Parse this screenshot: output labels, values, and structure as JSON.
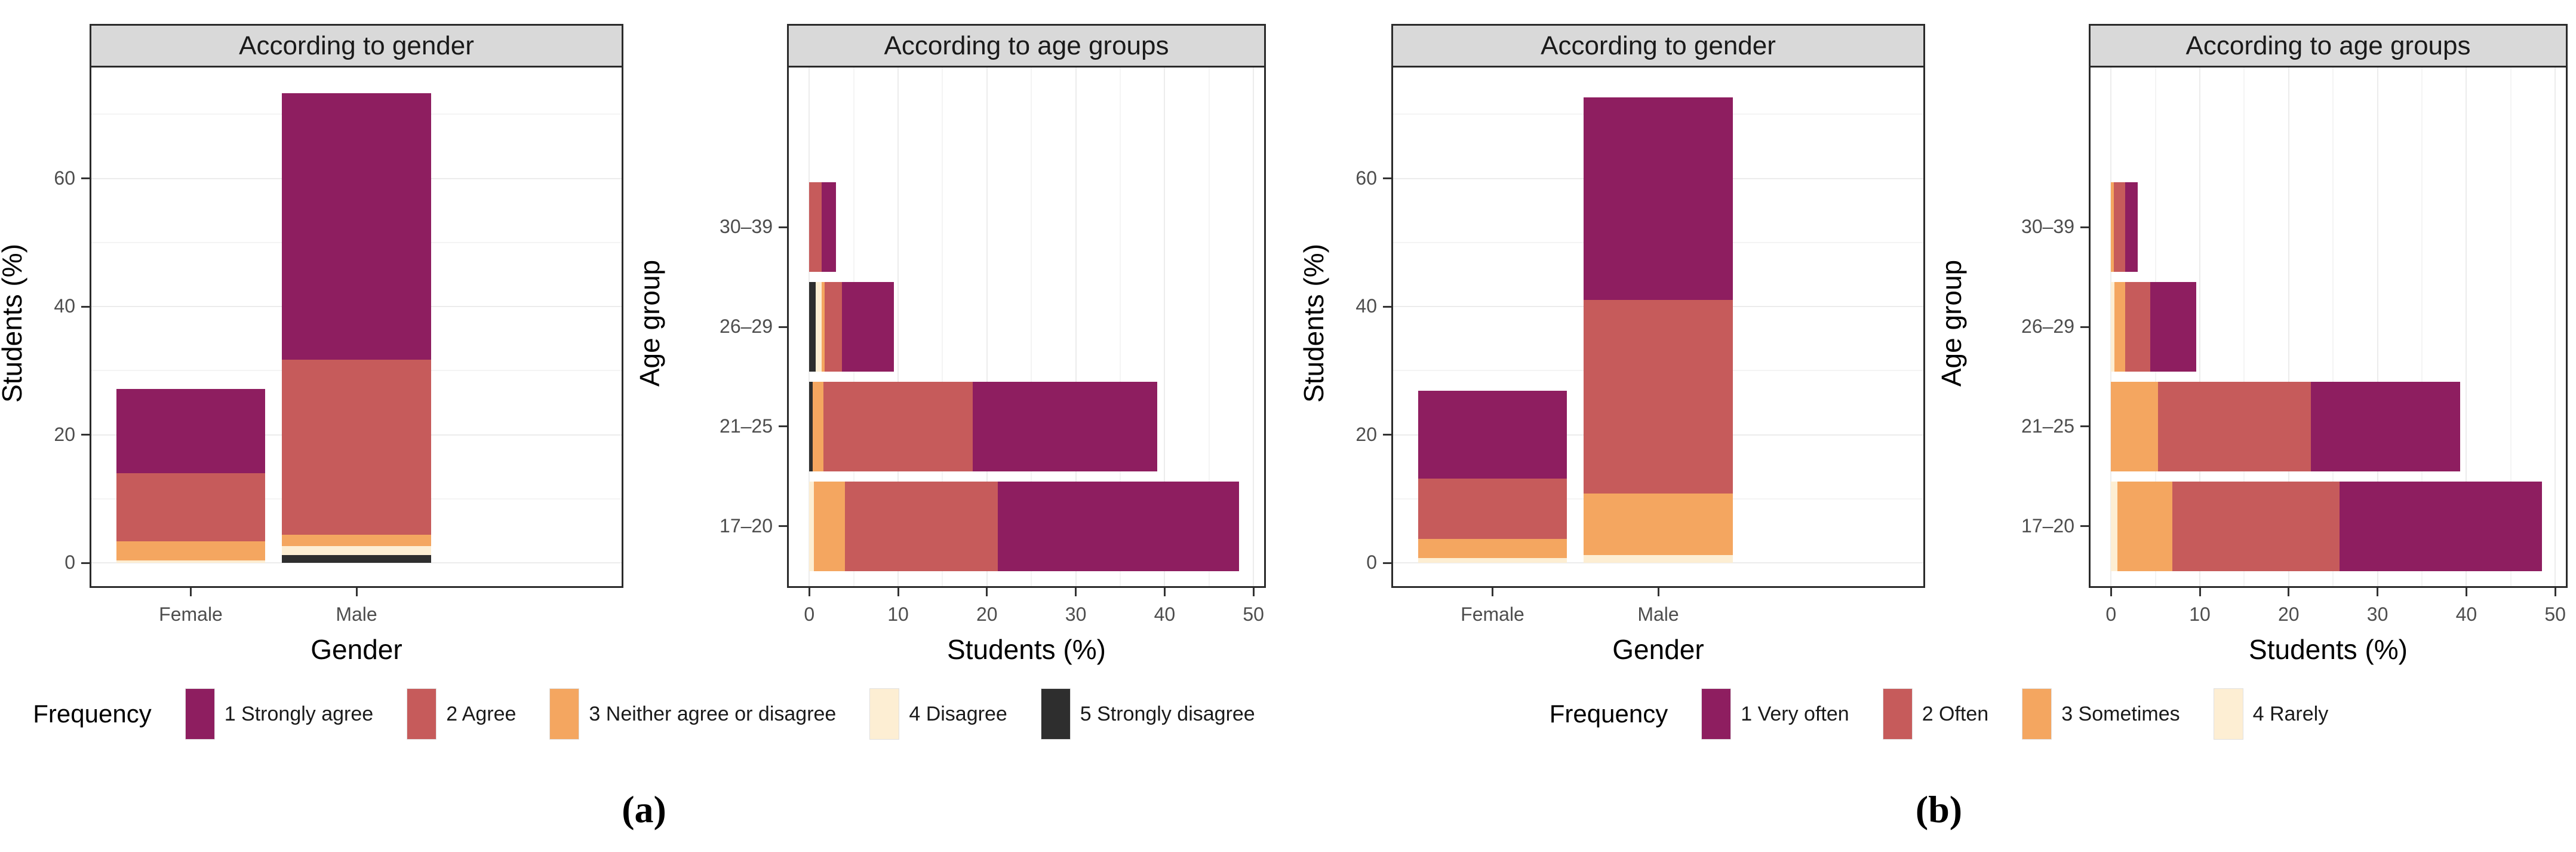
{
  "accent_colors": {
    "level1_purple": "#8e1e60",
    "level2_red": "#c65b5b",
    "level3_orange": "#f4a660",
    "level4_cream": "#fdeed3",
    "level5_black": "#2e2e2e",
    "panel_header_bg": "#d9d9d9",
    "panel_border": "#2b2b2b",
    "gridline": "#ececec",
    "tick_text": "#4d4d4d"
  },
  "figures": [
    {
      "id": "a",
      "caption": "(a)",
      "legend": {
        "title": "Frequency",
        "items": [
          {
            "label": "1 Strongly agree",
            "color": "#8e1e60"
          },
          {
            "label": "2 Agree",
            "color": "#c65b5b"
          },
          {
            "label": "3 Neither agree or disagree",
            "color": "#f4a660"
          },
          {
            "label": "4 Disagree",
            "color": "#fdeed3"
          },
          {
            "label": "5 Strongly disagree",
            "color": "#2e2e2e"
          }
        ]
      }
    },
    {
      "id": "b",
      "caption": "(b)",
      "legend": {
        "title": "Frequency",
        "items": [
          {
            "label": "1 Very often",
            "color": "#8e1e60"
          },
          {
            "label": "2 Often",
            "color": "#c65b5b"
          },
          {
            "label": "3 Sometimes",
            "color": "#f4a660"
          },
          {
            "label": "4 Rarely",
            "color": "#fdeed3"
          }
        ]
      }
    }
  ],
  "chart_data": [
    {
      "id": "a-gender",
      "type": "bar",
      "orientation": "vertical",
      "stacked": true,
      "title": "According to gender",
      "xlabel": "Gender",
      "ylabel": "Students (%)",
      "categories": [
        "Female",
        "Male"
      ],
      "series_order": "bottom-to-top",
      "series": [
        {
          "name": "5 Strongly disagree",
          "color": "#2e2e2e",
          "values": [
            0,
            1.2
          ]
        },
        {
          "name": "4 Disagree",
          "color": "#fdeed3",
          "values": [
            0.4,
            1.4
          ]
        },
        {
          "name": "3 Neither agree or disagree",
          "color": "#f4a660",
          "values": [
            3.0,
            1.8
          ]
        },
        {
          "name": "2 Agree",
          "color": "#c65b5b",
          "values": [
            10.6,
            27.3
          ]
        },
        {
          "name": "1 Strongly agree",
          "color": "#8e1e60",
          "values": [
            13.2,
            41.6
          ]
        }
      ],
      "totals": [
        27.2,
        73.3
      ],
      "yticks": [
        0,
        20,
        40,
        60
      ],
      "yticks_minor": [
        10,
        30,
        50,
        70
      ],
      "ylim": [
        -3.6,
        77.3
      ],
      "grid": true,
      "legend_position": "bottom"
    },
    {
      "id": "a-age",
      "type": "bar",
      "orientation": "horizontal",
      "stacked": true,
      "title": "According to age groups",
      "xlabel": "Students (%)",
      "ylabel": "Age group",
      "categories": [
        "17–20",
        "21–25",
        "26–29",
        "30–39"
      ],
      "series_order": "left-to-right",
      "series": [
        {
          "name": "5 Strongly disagree",
          "color": "#2e2e2e",
          "values": [
            0,
            0.4,
            0.7,
            0
          ]
        },
        {
          "name": "4 Disagree",
          "color": "#fdeed3",
          "values": [
            0.5,
            0,
            0.7,
            0
          ]
        },
        {
          "name": "3 Neither agree or disagree",
          "color": "#f4a660",
          "values": [
            3.5,
            1.2,
            0.3,
            0
          ]
        },
        {
          "name": "2 Agree",
          "color": "#c65b5b",
          "values": [
            17.2,
            16.8,
            2.0,
            1.4
          ]
        },
        {
          "name": "1 Strongly agree",
          "color": "#8e1e60",
          "values": [
            27.2,
            20.8,
            5.8,
            1.6
          ]
        }
      ],
      "totals": [
        48.4,
        39.2,
        9.5,
        3.0
      ],
      "xticks": [
        0,
        10,
        20,
        30,
        40,
        50
      ],
      "xticks_minor": [
        5,
        15,
        25,
        35,
        45
      ],
      "xlim": [
        -2.3,
        51.2
      ],
      "grid": true,
      "legend_position": "bottom"
    },
    {
      "id": "b-gender",
      "type": "bar",
      "orientation": "vertical",
      "stacked": true,
      "title": "According to gender",
      "xlabel": "Gender",
      "ylabel": "Students (%)",
      "categories": [
        "Female",
        "Male"
      ],
      "series_order": "bottom-to-top",
      "series": [
        {
          "name": "4 Rarely",
          "color": "#fdeed3",
          "values": [
            0.8,
            1.2
          ]
        },
        {
          "name": "3 Sometimes",
          "color": "#f4a660",
          "values": [
            3.0,
            9.6
          ]
        },
        {
          "name": "2 Often",
          "color": "#c65b5b",
          "values": [
            9.4,
            30.2
          ]
        },
        {
          "name": "1 Very often",
          "color": "#8e1e60",
          "values": [
            13.7,
            31.6
          ]
        }
      ],
      "totals": [
        26.9,
        72.6
      ],
      "yticks": [
        0,
        20,
        40,
        60
      ],
      "yticks_minor": [
        10,
        30,
        50,
        70
      ],
      "ylim": [
        -3.6,
        77.3
      ],
      "grid": true,
      "legend_position": "bottom"
    },
    {
      "id": "b-age",
      "type": "bar",
      "orientation": "horizontal",
      "stacked": true,
      "title": "According to age groups",
      "xlabel": "Students (%)",
      "ylabel": "Age group",
      "categories": [
        "17–20",
        "21–25",
        "26–29",
        "30–39"
      ],
      "series_order": "left-to-right",
      "series": [
        {
          "name": "4 Rarely",
          "color": "#fdeed3",
          "values": [
            0.7,
            0,
            0.4,
            0
          ]
        },
        {
          "name": "3 Sometimes",
          "color": "#f4a660",
          "values": [
            6.2,
            5.3,
            1.2,
            0.35
          ]
        },
        {
          "name": "2 Often",
          "color": "#c65b5b",
          "values": [
            18.8,
            17.2,
            2.8,
            1.25
          ]
        },
        {
          "name": "1 Very often",
          "color": "#8e1e60",
          "values": [
            22.8,
            16.8,
            5.2,
            1.4
          ]
        }
      ],
      "totals": [
        48.5,
        39.3,
        9.6,
        3.0
      ],
      "xticks": [
        0,
        10,
        20,
        30,
        40,
        50
      ],
      "xticks_minor": [
        5,
        15,
        25,
        35,
        45
      ],
      "xlim": [
        -2.3,
        51.2
      ],
      "grid": true,
      "legend_position": "bottom"
    }
  ]
}
